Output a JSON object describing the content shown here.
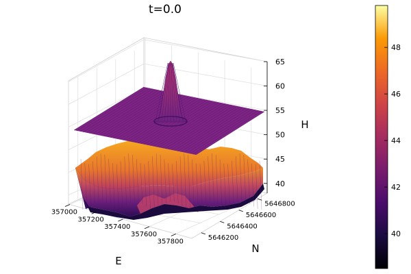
{
  "chart_data": {
    "type": "surface3d",
    "title": "t=0.0",
    "xlabel": "E",
    "ylabel": "N",
    "zlabel": "H",
    "x_ticks": [
      357000,
      357200,
      357400,
      357600,
      357800
    ],
    "y_ticks": [
      5646200,
      5646400,
      5646600,
      5646800
    ],
    "z_ticks": [
      40,
      45,
      50,
      55,
      60,
      65
    ],
    "xlim": [
      356990,
      357920
    ],
    "ylim": [
      5646100,
      5646900
    ],
    "zlim": [
      38,
      65
    ],
    "colormap": "inferno",
    "colorbar_ticks": [
      40,
      42,
      44,
      46,
      48
    ],
    "colorbar_range": [
      38.5,
      49.8
    ],
    "grid": true,
    "series": [
      {
        "kind": "flat-surface",
        "level": 54.0,
        "color": "#7e2482",
        "peak": {
          "x": 357400,
          "y": 5646500,
          "height": 65,
          "sigma": 45
        }
      },
      {
        "kind": "terrain-surface",
        "base": 40.5,
        "top": 46.5,
        "colors": {
          "low": "#3a0f6e",
          "mid": "#c6426c",
          "high": "#f7a11a"
        }
      }
    ]
  }
}
